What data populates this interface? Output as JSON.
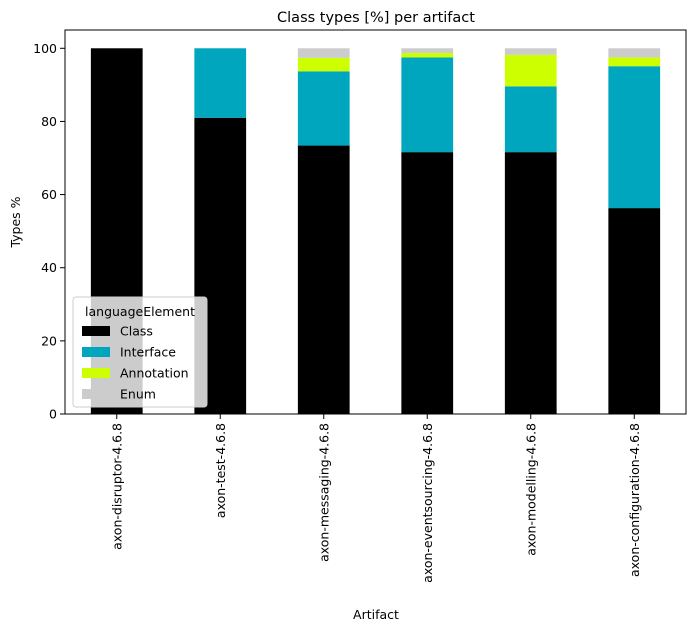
{
  "chart_data": {
    "type": "bar",
    "stacked": true,
    "title": "Class types [%] per artifact",
    "xlabel": "Artifact",
    "ylabel": "Types %",
    "ylim": [
      0,
      105
    ],
    "yticks": [
      0,
      20,
      40,
      60,
      80,
      100
    ],
    "grid": false,
    "categories": [
      "axon-disruptor-4.6.8",
      "axon-test-4.6.8",
      "axon-messaging-4.6.8",
      "axon-eventsourcing-4.6.8",
      "axon-modelling-4.6.8",
      "axon-configuration-4.6.8"
    ],
    "series": [
      {
        "name": "Class",
        "color": "#000000",
        "values": [
          100,
          81.0,
          73.4,
          71.6,
          71.6,
          56.3
        ]
      },
      {
        "name": "Interface",
        "color": "#00a5be",
        "values": [
          0,
          19.0,
          20.3,
          25.9,
          18.0,
          38.8
        ]
      },
      {
        "name": "Annotation",
        "color": "#cdff00",
        "values": [
          0,
          0,
          3.7,
          1.2,
          8.6,
          2.4
        ]
      },
      {
        "name": "Enum",
        "color": "#cccccc",
        "values": [
          0,
          0,
          2.6,
          1.3,
          1.8,
          2.5
        ]
      }
    ],
    "legend": {
      "title": "languageElement",
      "placement": "lower-left"
    }
  }
}
